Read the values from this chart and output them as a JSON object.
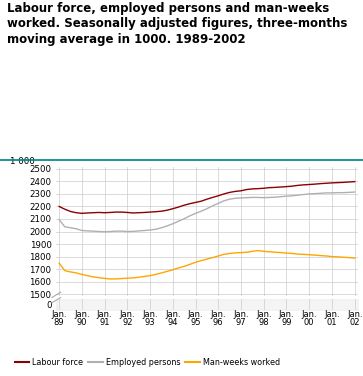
{
  "title": "Labour force, employed persons and man-weeks\nworked. Seasonally adjusted figures, three-months\nmoving average in 1000. 1989-2002",
  "title_color": "#000000",
  "title_fontsize": 8.5,
  "background_color": "#ffffff",
  "plot_bg_color": "#ffffff",
  "grid_color": "#cccccc",
  "teal_line_color": "#008080",
  "labour_force_color": "#8B0000",
  "employed_persons_color": "#b0b0b0",
  "man_weeks_color": "#FFA500",
  "ytick_label_top": "1 000",
  "labour_force": [
    2200,
    2178,
    2160,
    2150,
    2145,
    2148,
    2150,
    2152,
    2150,
    2152,
    2155,
    2155,
    2152,
    2148,
    2150,
    2152,
    2155,
    2158,
    2162,
    2170,
    2182,
    2195,
    2210,
    2222,
    2232,
    2242,
    2258,
    2272,
    2285,
    2300,
    2312,
    2320,
    2325,
    2335,
    2340,
    2342,
    2345,
    2350,
    2352,
    2355,
    2358,
    2362,
    2368,
    2372,
    2375,
    2378,
    2382,
    2385,
    2388,
    2390,
    2392,
    2395,
    2398
  ],
  "employed_persons": [
    2095,
    2038,
    2030,
    2022,
    2008,
    2005,
    2003,
    2000,
    1998,
    2000,
    2003,
    2003,
    2000,
    2001,
    2005,
    2008,
    2012,
    2018,
    2030,
    2045,
    2062,
    2082,
    2102,
    2125,
    2145,
    2162,
    2182,
    2205,
    2225,
    2245,
    2258,
    2265,
    2268,
    2270,
    2272,
    2272,
    2270,
    2272,
    2274,
    2278,
    2282,
    2285,
    2290,
    2295,
    2300,
    2302,
    2305,
    2308,
    2308,
    2310,
    2310,
    2312,
    2315
  ],
  "man_weeks": [
    1748,
    1688,
    1678,
    1670,
    1658,
    1648,
    1638,
    1632,
    1626,
    1622,
    1622,
    1625,
    1628,
    1630,
    1635,
    1642,
    1648,
    1658,
    1670,
    1682,
    1695,
    1710,
    1722,
    1738,
    1755,
    1768,
    1780,
    1792,
    1805,
    1818,
    1825,
    1830,
    1832,
    1835,
    1842,
    1848,
    1842,
    1838,
    1835,
    1832,
    1828,
    1825,
    1820,
    1818,
    1815,
    1812,
    1808,
    1805,
    1800,
    1798,
    1795,
    1792,
    1788
  ],
  "n_points": 53,
  "x_tick_positions": [
    0,
    4,
    8,
    12,
    16,
    20,
    24,
    28,
    32,
    36,
    40,
    44,
    48,
    52
  ],
  "x_tick_labels": [
    "Jan.\n89",
    "Jan.\n90",
    "Jan.\n91",
    "Jan.\n92",
    "Jan.\n93",
    "Jan.\n94",
    "Jan.\n95",
    "Jan.\n96",
    "Jan.\n97",
    "Jan.\n98",
    "Jan.\n99",
    "Jan.\n00",
    "Jan.\n01",
    "Jan.\n02"
  ]
}
